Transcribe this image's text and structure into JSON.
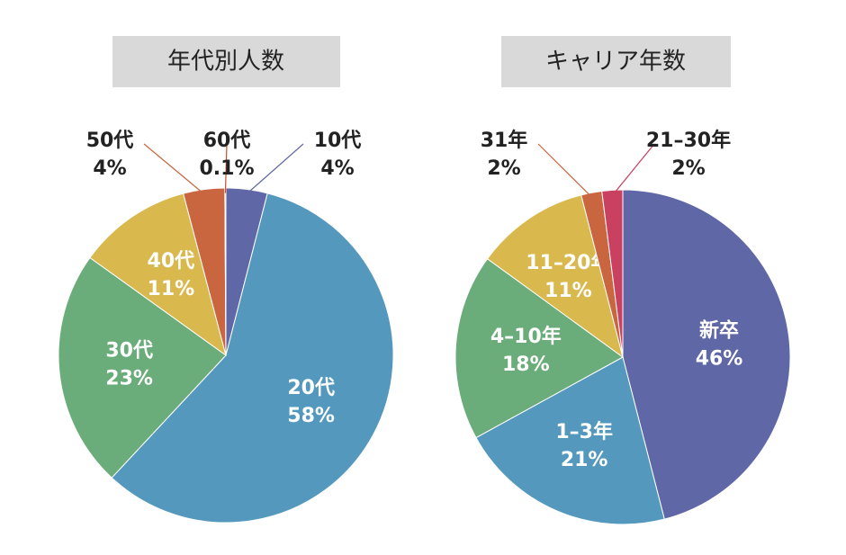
{
  "chart_data": [
    {
      "type": "pie",
      "title": "年代別人数",
      "categories": [
        "10代",
        "20代",
        "30代",
        "40代",
        "50代",
        "60代"
      ],
      "values": [
        4,
        58,
        23,
        11,
        4,
        0.1
      ],
      "value_labels": [
        "4%",
        "58%",
        "23%",
        "11%",
        "4%",
        "0.1%"
      ],
      "colors": [
        "#5f67a6",
        "#5499bd",
        "#6aad7a",
        "#d9b84e",
        "#c9653f",
        "#c9502f"
      ]
    },
    {
      "type": "pie",
      "title": "キャリア年数",
      "categories": [
        "新卒",
        "1–3年",
        "4–10年",
        "11–20年",
        "31年",
        "21–30年"
      ],
      "values": [
        46,
        21,
        18,
        11,
        2,
        2
      ],
      "value_labels": [
        "46%",
        "21%",
        "18%",
        "11%",
        "2%",
        "2%"
      ],
      "colors": [
        "#5f67a6",
        "#5499bd",
        "#6aad7a",
        "#d9b84e",
        "#c9653f",
        "#c94060"
      ]
    }
  ]
}
